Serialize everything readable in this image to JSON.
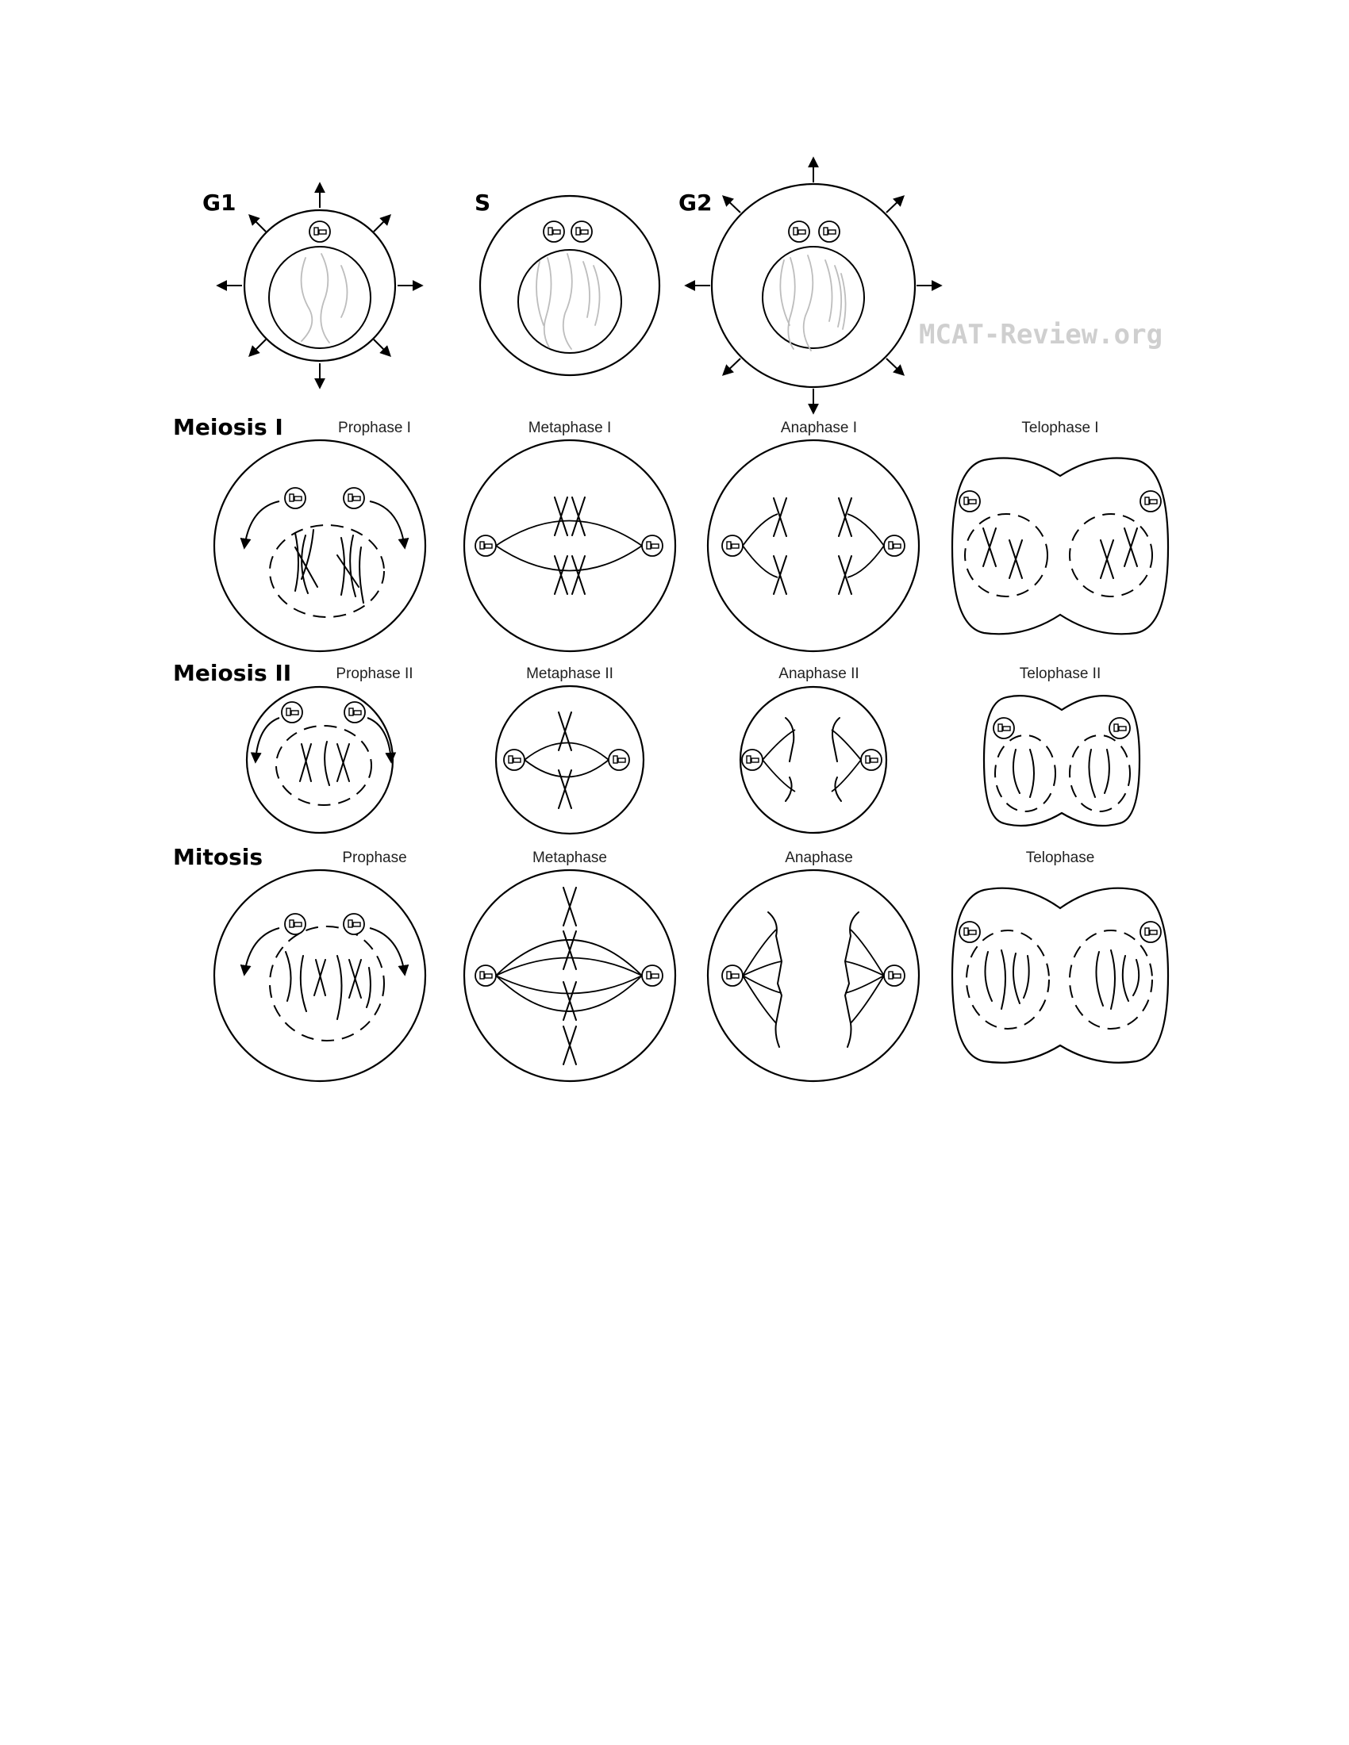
{
  "interphase": {
    "g1_label": "G1",
    "s_label": "S",
    "g2_label": "G2"
  },
  "rows": {
    "meiosis1": {
      "label": "Meiosis I",
      "phases": [
        "Prophase I",
        "Metaphase I",
        "Anaphase I",
        "Telophase I"
      ]
    },
    "meiosis2": {
      "label": "Meiosis II",
      "phases": [
        "Prophase II",
        "Metaphase II",
        "Anaphase II",
        "Telophase II"
      ]
    },
    "mitosis": {
      "label": "Mitosis",
      "phases": [
        "Prophase",
        "Metaphase",
        "Anaphase",
        "Telophase"
      ]
    }
  },
  "watermark": "MCAT-Review.org"
}
